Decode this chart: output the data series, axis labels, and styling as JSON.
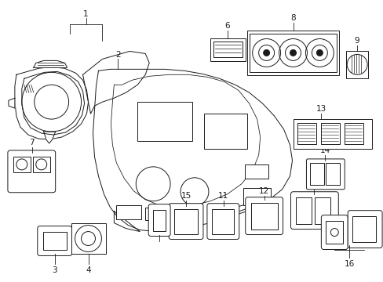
{
  "background_color": "#ffffff",
  "line_color": "#1a1a1a",
  "figsize": [
    4.89,
    3.6
  ],
  "dpi": 100,
  "label_fontsize": 7.5,
  "lw": 0.7
}
